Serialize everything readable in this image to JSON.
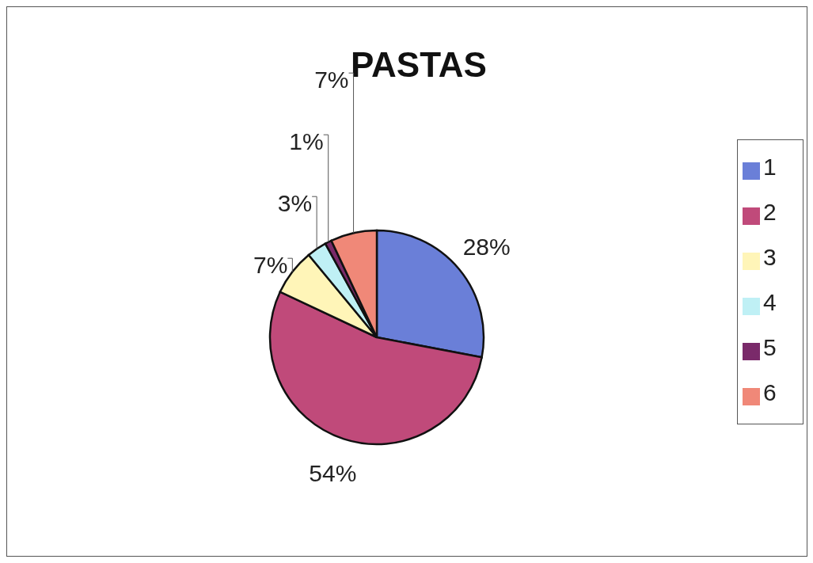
{
  "chart_data": {
    "type": "pie",
    "title": "PASTAS",
    "categories": [
      "1",
      "2",
      "3",
      "4",
      "5",
      "6"
    ],
    "values": [
      28,
      54,
      7,
      3,
      1,
      7
    ],
    "value_labels": [
      "28%",
      "54%",
      "7%",
      "3%",
      "1%",
      "7%"
    ],
    "colors": [
      "#6a7fd8",
      "#c04a7a",
      "#fff5b8",
      "#bff0f5",
      "#7a2a6a",
      "#f08878"
    ],
    "legend": "right"
  }
}
